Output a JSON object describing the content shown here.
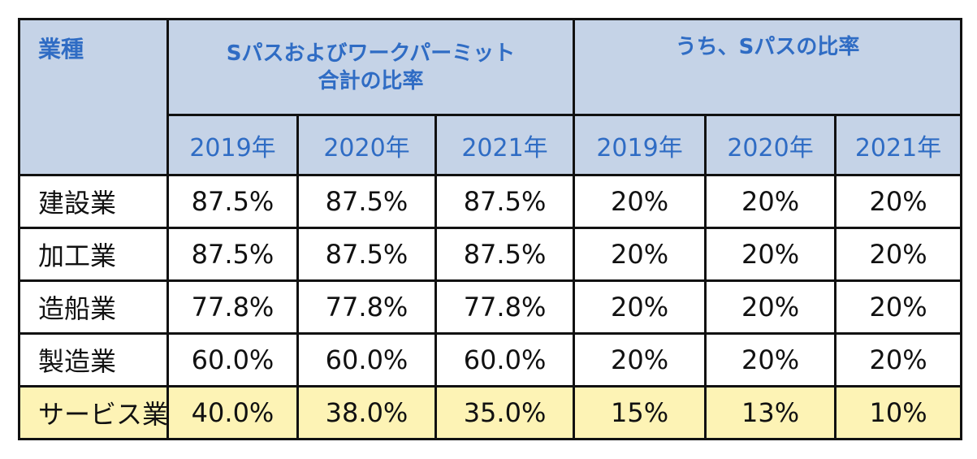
{
  "header": {
    "industry_label": "業種",
    "group1_line1": "Sパスおよびワークパーミット",
    "group1_line2": "合計の比率",
    "group2_label": "うち、Sパスの比率",
    "years": [
      "2019年",
      "2020年",
      "2021年",
      "2019年",
      "2020年",
      "2021年"
    ]
  },
  "rows": [
    {
      "industry": "建設業",
      "values": [
        "87.5%",
        "87.5%",
        "87.5%",
        "20%",
        "20%",
        "20%"
      ],
      "highlight": false
    },
    {
      "industry": "加工業",
      "values": [
        "87.5%",
        "87.5%",
        "87.5%",
        "20%",
        "20%",
        "20%"
      ],
      "highlight": false
    },
    {
      "industry": "造船業",
      "values": [
        "77.8%",
        "77.8%",
        "77.8%",
        "20%",
        "20%",
        "20%"
      ],
      "highlight": false
    },
    {
      "industry": "製造業",
      "values": [
        "60.0%",
        "60.0%",
        "60.0%",
        "20%",
        "20%",
        "20%"
      ],
      "highlight": false
    },
    {
      "industry": "サービス業",
      "values": [
        "40.0%",
        "38.0%",
        "35.0%",
        "15%",
        "13%",
        "10%"
      ],
      "highlight": true
    }
  ],
  "colors": {
    "header_bg": "#c5d3e7",
    "header_text": "#2f6cc4",
    "highlight_bg": "#fdf3b5",
    "border": "#111111"
  }
}
